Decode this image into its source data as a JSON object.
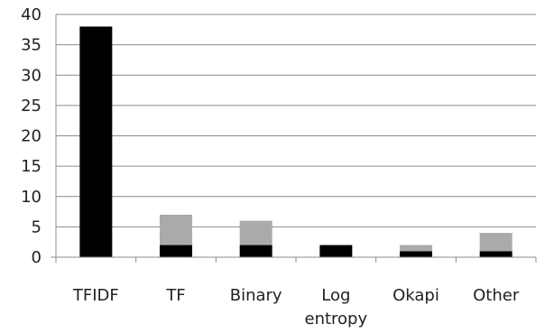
{
  "chart_data": {
    "type": "bar",
    "stacked": true,
    "categories": [
      "TFIDF",
      "TF",
      "Binary",
      "Log entropy",
      "Okapi",
      "Other"
    ],
    "category_lines": [
      [
        "TFIDF"
      ],
      [
        "TF"
      ],
      [
        "Binary"
      ],
      [
        "Log",
        "entropy"
      ],
      [
        "Okapi"
      ],
      [
        "Other"
      ]
    ],
    "series": [
      {
        "values": [
          38,
          2,
          2,
          2,
          1,
          1
        ],
        "color": "#000000"
      },
      {
        "values": [
          0,
          5,
          4,
          0,
          1,
          3
        ],
        "color": "#aaaaaa"
      }
    ],
    "ylim": [
      0,
      40
    ],
    "yticks": [
      0,
      5,
      10,
      15,
      20,
      25,
      30,
      35,
      40
    ],
    "grid": true,
    "legend": "none",
    "title": "",
    "xlabel": "",
    "ylabel": ""
  }
}
